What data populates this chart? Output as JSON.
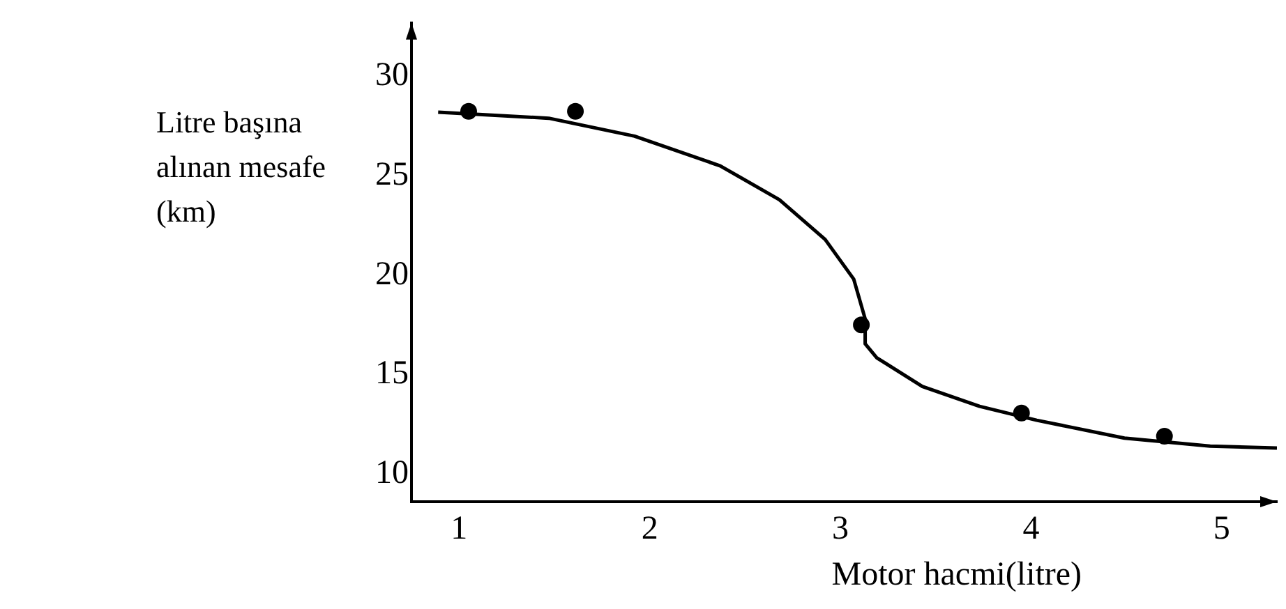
{
  "chart_data": {
    "type": "scatter",
    "xlabel": "Motor hacmi(litre)",
    "ylabel": "Litre başına alınan mesafe (km)",
    "xlim": [
      0.75,
      5.29
    ],
    "xticks": [
      1,
      2,
      3,
      4,
      5
    ],
    "ylim": [
      8.6,
      32.7
    ],
    "yticks": [
      10,
      15,
      20,
      25,
      30
    ],
    "series": [
      {
        "type": "scatter",
        "color": "#000000",
        "marker": "circle",
        "x": [
          1.05,
          1.61,
          3.11,
          3.95,
          4.7
        ],
        "values": [
          28.25,
          28.25,
          17.5,
          13.06,
          11.9
        ]
      },
      {
        "type": "line",
        "color": "#000000",
        "x": [
          0.89,
          1.47,
          1.92,
          2.37,
          2.68,
          2.92,
          3.07,
          3.13,
          3.13,
          3.19,
          3.43,
          3.73,
          4.03,
          4.49,
          4.94,
          5.29
        ],
        "values": [
          28.2,
          27.9,
          27.0,
          25.5,
          23.8,
          21.8,
          19.8,
          17.8,
          16.55,
          15.85,
          14.4,
          13.4,
          12.7,
          11.8,
          11.4,
          11.3
        ]
      }
    ]
  }
}
